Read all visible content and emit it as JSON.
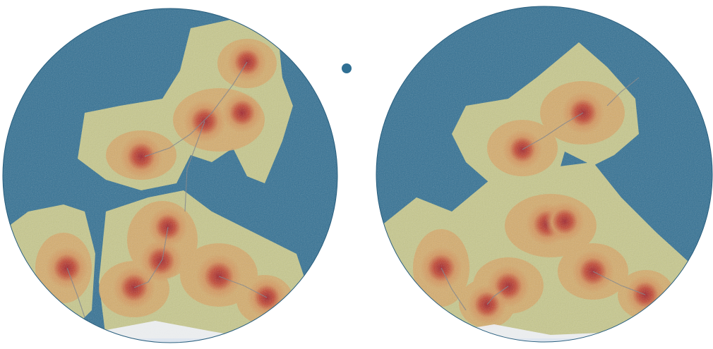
{
  "scene": {
    "description_kind": "procedural-terrain-render",
    "colors": {
      "background": "#ffffff",
      "ocean": "#2f6f93",
      "ocean_light": "#3d82a6",
      "lowland": "#c8c98c",
      "midland": "#d9a866",
      "highland": "#c9663e",
      "peak": "#b3272a",
      "river": "#7b7f86",
      "ice": "#eef1f8"
    }
  }
}
